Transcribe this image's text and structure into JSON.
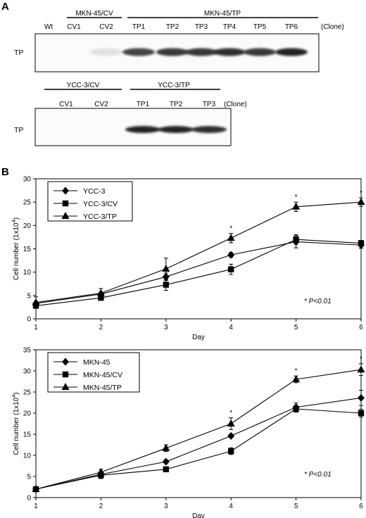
{
  "panel_a": {
    "letter": "A",
    "blot1": {
      "group_cv": "MKN-45/CV",
      "group_tp": "MKN-45/TP",
      "lanes": [
        "Wt",
        "CV1",
        "CV2",
        "TP1",
        "TP2",
        "TP3",
        "TP4",
        "TP5",
        "TP6"
      ],
      "clone_label": "(Clone)",
      "row_label": "TP",
      "band_intensity": [
        0,
        0,
        0.05,
        0.8,
        0.85,
        0.85,
        0.9,
        0.85,
        0.95
      ]
    },
    "blot2": {
      "group_cv": "YCC-3/CV",
      "group_tp": "YCC-3/TP",
      "lanes": [
        "CV1",
        "CV2",
        "TP1",
        "TP2",
        "TP3"
      ],
      "clone_label": "(Clone)",
      "row_label": "TP",
      "band_intensity": [
        0,
        0,
        0.95,
        0.95,
        0.9
      ]
    }
  },
  "panel_b": {
    "letter": "B"
  },
  "chart_data": [
    {
      "type": "line",
      "x": [
        1,
        2,
        3,
        4,
        5,
        6
      ],
      "xlabel": "Day",
      "ylabel": "Cell number (1x10",
      "ylabel_sup": "4",
      "ylabel_close": ")",
      "ylim": [
        0,
        30
      ],
      "yticks": [
        0,
        5,
        10,
        15,
        20,
        25,
        30
      ],
      "xticks": [
        "1",
        "2",
        "3",
        "4",
        "5",
        "6"
      ],
      "grid": false,
      "legend_position": "top-left",
      "note": "* P<0.01",
      "significance_marker": "*",
      "significant_x": [
        4,
        5,
        6
      ],
      "series": [
        {
          "name": "YCC-3",
          "marker": "diamond",
          "values": [
            3.3,
            5.3,
            9.0,
            13.7,
            16.5,
            15.8
          ],
          "err": [
            0.4,
            0.4,
            0.8,
            0.5,
            1.3,
            0.7
          ]
        },
        {
          "name": "YCC-3/CV",
          "marker": "square",
          "values": [
            2.8,
            4.5,
            7.3,
            10.6,
            17.0,
            16.2
          ],
          "err": [
            0.4,
            0.4,
            1.2,
            1.1,
            1.0,
            0.6
          ]
        },
        {
          "name": "YCC-3/TP",
          "marker": "triangle",
          "values": [
            3.5,
            5.5,
            10.7,
            17.3,
            24.0,
            25.0
          ],
          "err": [
            1.2,
            1.0,
            2.3,
            1.0,
            1.0,
            0.9
          ]
        }
      ]
    },
    {
      "type": "line",
      "x": [
        1,
        2,
        3,
        4,
        5,
        6
      ],
      "xlabel": "Day",
      "ylabel": "Cell number (1x10",
      "ylabel_sup": "4",
      "ylabel_close": ")",
      "ylim": [
        0,
        35
      ],
      "yticks": [
        0,
        5,
        10,
        15,
        20,
        25,
        30,
        35
      ],
      "xticks": [
        "1",
        "2",
        "3",
        "4",
        "5",
        "6"
      ],
      "grid": false,
      "legend_position": "top-left",
      "note": "* P<0.01",
      "significance_marker": "*",
      "significant_x": [
        4,
        5,
        6
      ],
      "series": [
        {
          "name": "MKN-45",
          "marker": "diamond",
          "values": [
            2.0,
            5.5,
            8.5,
            14.6,
            21.4,
            23.6
          ],
          "err": [
            0.3,
            0.4,
            0.4,
            0.4,
            1.0,
            1.8
          ]
        },
        {
          "name": "MKN-45/CV",
          "marker": "square",
          "values": [
            2.0,
            5.3,
            6.7,
            11.0,
            21.0,
            20.0
          ],
          "err": [
            0.3,
            0.8,
            0.4,
            0.8,
            0.8,
            0.9
          ]
        },
        {
          "name": "MKN-45/TP",
          "marker": "triangle",
          "values": [
            2.0,
            6.0,
            11.7,
            17.5,
            28.0,
            30.3
          ],
          "err": [
            0.3,
            0.7,
            0.8,
            1.4,
            0.8,
            1.4
          ]
        }
      ]
    }
  ]
}
